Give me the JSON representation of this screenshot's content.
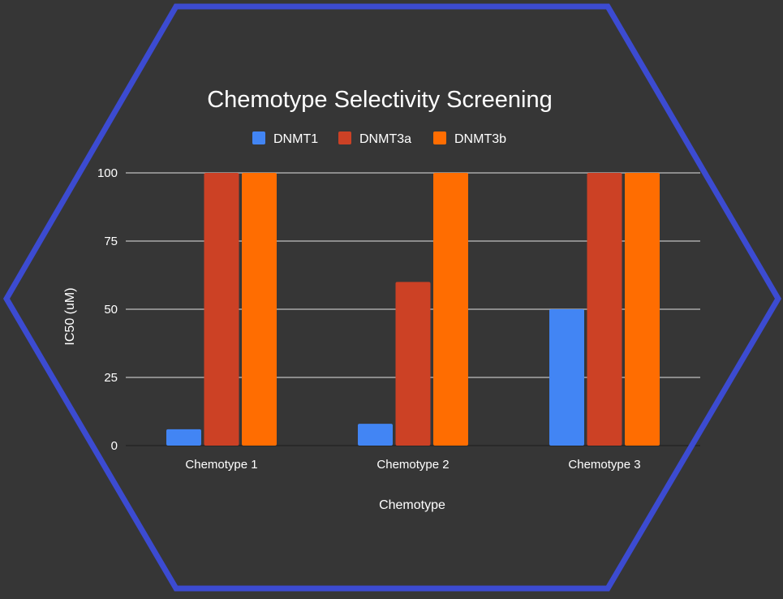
{
  "chart_data": {
    "type": "bar",
    "title": "Chemotype Selectivity Screening",
    "xlabel": "Chemotype",
    "ylabel": "IC50 (uM)",
    "categories": [
      "Chemotype 1",
      "Chemotype 2",
      "Chemotype 3"
    ],
    "series": [
      {
        "name": "DNMT1",
        "color": "#4285f4",
        "values": [
          6,
          8,
          50
        ]
      },
      {
        "name": "DNMT3a",
        "color": "#cc4125",
        "values": [
          100,
          60,
          100
        ]
      },
      {
        "name": "DNMT3b",
        "color": "#ff6d01",
        "values": [
          100,
          100,
          100
        ]
      }
    ],
    "ylim": [
      0,
      100
    ],
    "yticks": [
      "0",
      "25",
      "50",
      "75",
      "100"
    ],
    "grid": true,
    "legend_position": "top"
  },
  "colors": {
    "background": "#363636",
    "hexagon_border": "#3c4bd1",
    "text": "#ffffff"
  }
}
